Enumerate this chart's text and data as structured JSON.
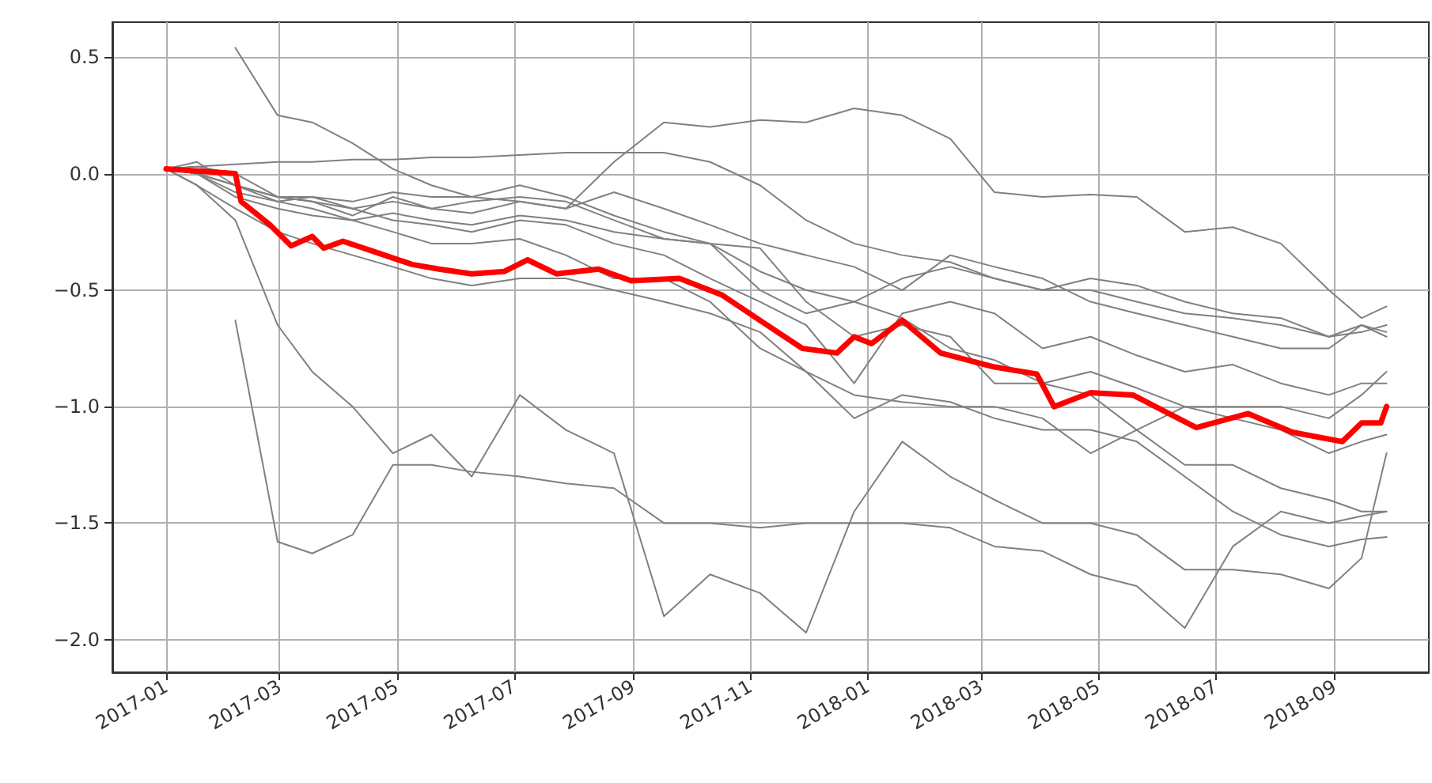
{
  "chart_data": {
    "type": "line",
    "x": [
      "2017-01-01",
      "2017-01-17",
      "2017-02-06",
      "2017-02-28",
      "2017-03-18",
      "2017-04-08",
      "2017-04-29",
      "2017-05-19",
      "2017-06-09",
      "2017-07-04",
      "2017-07-28",
      "2017-08-22",
      "2017-09-17",
      "2017-10-11",
      "2017-11-06",
      "2017-11-30",
      "2017-12-25",
      "2018-01-19",
      "2018-02-13",
      "2018-03-08",
      "2018-04-02",
      "2018-04-27",
      "2018-05-21",
      "2018-06-15",
      "2018-07-10",
      "2018-08-04",
      "2018-08-29",
      "2018-09-15",
      "2018-09-28"
    ],
    "series": [
      {
        "color": "#808080",
        "values": [
          0.02,
          0.03,
          0.04,
          0.05,
          0.05,
          0.06,
          0.06,
          0.07,
          0.07,
          0.08,
          0.09,
          0.09,
          0.09,
          0.05,
          -0.05,
          -0.2,
          -0.3,
          -0.35,
          -0.38,
          -0.45,
          -0.5,
          -0.5,
          -0.55,
          -0.6,
          -0.62,
          -0.65,
          -0.7,
          -0.68,
          -0.65
        ]
      },
      {
        "color": "#808080",
        "values": [
          0.02,
          0.0,
          -0.05,
          -0.1,
          -0.12,
          -0.15,
          -0.12,
          -0.15,
          -0.17,
          -0.12,
          -0.15,
          0.05,
          0.22,
          0.2,
          0.23,
          0.22,
          0.28,
          0.25,
          0.15,
          -0.08,
          -0.1,
          -0.09,
          -0.1,
          -0.25,
          -0.23,
          -0.3,
          -0.5,
          -0.62,
          -0.57
        ]
      },
      {
        "color": "#808080",
        "values": [
          null,
          null,
          0.54,
          0.25,
          0.22,
          0.13,
          0.02,
          -0.05,
          -0.1,
          -0.12,
          -0.15,
          -0.08,
          -0.15,
          -0.22,
          -0.3,
          -0.35,
          -0.4,
          -0.5,
          -0.35,
          -0.4,
          -0.45,
          -0.55,
          -0.6,
          -0.65,
          -0.7,
          -0.75,
          -0.75,
          -0.65,
          -0.7
        ]
      },
      {
        "color": "#808080",
        "values": [
          null,
          null,
          -0.63,
          -1.58,
          -1.63,
          -1.55,
          -1.25,
          -1.25,
          -1.28,
          -1.3,
          -1.33,
          -1.35,
          -1.5,
          -1.5,
          -1.52,
          -1.5,
          -1.5,
          -1.5,
          -1.52,
          -1.6,
          -1.62,
          -1.72,
          -1.77,
          -1.95,
          -1.6,
          -1.45,
          -1.5,
          -1.47,
          -1.45
        ]
      },
      {
        "color": "#808080",
        "values": [
          0.02,
          -0.05,
          -0.2,
          -0.65,
          -0.85,
          -1.0,
          -1.2,
          -1.12,
          -1.3,
          -0.95,
          -1.1,
          -1.2,
          -1.9,
          -1.72,
          -1.8,
          -1.97,
          -1.45,
          -1.15,
          -1.3,
          -1.4,
          -1.5,
          -1.5,
          -1.55,
          -1.7,
          -1.7,
          -1.72,
          -1.78,
          -1.65,
          -1.2
        ]
      },
      {
        "color": "#808080",
        "values": [
          0.02,
          0.0,
          -0.08,
          -0.12,
          -0.15,
          -0.2,
          -0.17,
          -0.2,
          -0.22,
          -0.18,
          -0.2,
          -0.25,
          -0.28,
          -0.3,
          -0.42,
          -0.5,
          -0.55,
          -0.45,
          -0.4,
          -0.45,
          -0.5,
          -0.45,
          -0.48,
          -0.55,
          -0.6,
          -0.62,
          -0.7,
          -0.65,
          -0.68
        ]
      },
      {
        "color": "#808080",
        "values": [
          0.02,
          0.05,
          -0.05,
          -0.1,
          -0.1,
          -0.15,
          -0.2,
          -0.22,
          -0.25,
          -0.2,
          -0.22,
          -0.3,
          -0.35,
          -0.45,
          -0.55,
          -0.65,
          -0.9,
          -0.6,
          -0.55,
          -0.6,
          -0.75,
          -0.7,
          -0.78,
          -0.85,
          -0.82,
          -0.9,
          -0.95,
          -0.9,
          -0.9
        ]
      },
      {
        "color": "#808080",
        "values": [
          0.02,
          0.0,
          -0.1,
          -0.15,
          -0.18,
          -0.2,
          -0.25,
          -0.3,
          -0.3,
          -0.28,
          -0.35,
          -0.45,
          -0.45,
          -0.55,
          -0.75,
          -0.85,
          -0.95,
          -0.98,
          -1.0,
          -1.0,
          -1.05,
          -1.2,
          -1.1,
          -1.25,
          -1.25,
          -1.35,
          -1.4,
          -1.45,
          -1.45
        ]
      },
      {
        "color": "#808080",
        "values": [
          0.02,
          -0.05,
          -0.15,
          -0.25,
          -0.3,
          -0.35,
          -0.4,
          -0.45,
          -0.48,
          -0.45,
          -0.45,
          -0.5,
          -0.55,
          -0.6,
          -0.68,
          -0.85,
          -1.05,
          -0.95,
          -0.98,
          -1.05,
          -1.1,
          -1.1,
          -1.15,
          -1.3,
          -1.45,
          -1.55,
          -1.6,
          -1.57,
          -1.56
        ]
      },
      {
        "color": "#808080",
        "values": [
          0.02,
          0.0,
          -0.05,
          -0.12,
          -0.1,
          -0.12,
          -0.08,
          -0.1,
          -0.1,
          -0.05,
          -0.1,
          -0.18,
          -0.25,
          -0.3,
          -0.5,
          -0.6,
          -0.55,
          -0.62,
          -0.75,
          -0.8,
          -0.9,
          -0.85,
          -0.92,
          -1.0,
          -1.05,
          -1.1,
          -1.2,
          -1.15,
          -1.12
        ]
      },
      {
        "color": "#808080",
        "values": [
          0.02,
          0.03,
          0.0,
          -0.1,
          -0.12,
          -0.18,
          -0.1,
          -0.15,
          -0.12,
          -0.1,
          -0.12,
          -0.2,
          -0.28,
          -0.3,
          -0.32,
          -0.55,
          -0.7,
          -0.65,
          -0.7,
          -0.9,
          -0.9,
          -0.95,
          -1.1,
          -1.0,
          -1.0,
          -1.0,
          -1.05,
          -0.95,
          -0.85
        ]
      },
      {
        "color": "#ff0000",
        "x": [
          "2017-01-01",
          "2017-02-06",
          "2017-02-09",
          "2017-02-24",
          "2017-03-07",
          "2017-03-18",
          "2017-03-24",
          "2017-04-03",
          "2017-04-21",
          "2017-05-09",
          "2017-05-23",
          "2017-06-09",
          "2017-06-26",
          "2017-07-08",
          "2017-07-23",
          "2017-08-14",
          "2017-08-31",
          "2017-09-25",
          "2017-10-17",
          "2017-11-06",
          "2017-11-28",
          "2017-12-16",
          "2017-12-25",
          "2018-01-03",
          "2018-01-19",
          "2018-02-08",
          "2018-03-08",
          "2018-03-30",
          "2018-04-08",
          "2018-04-27",
          "2018-05-19",
          "2018-06-21",
          "2018-07-18",
          "2018-08-10",
          "2018-09-05",
          "2018-09-15",
          "2018-09-25",
          "2018-09-28"
        ],
        "values": [
          0.02,
          0.0,
          -0.12,
          -0.22,
          -0.31,
          -0.27,
          -0.32,
          -0.29,
          -0.34,
          -0.39,
          -0.41,
          -0.43,
          -0.42,
          -0.37,
          -0.43,
          -0.41,
          -0.46,
          -0.45,
          -0.52,
          -0.63,
          -0.75,
          -0.77,
          -0.7,
          -0.73,
          -0.63,
          -0.77,
          -0.83,
          -0.86,
          -1.0,
          -0.94,
          -0.95,
          -1.09,
          -1.03,
          -1.11,
          -1.15,
          -1.07,
          -1.07,
          -1.0
        ]
      }
    ],
    "xlim": [
      "2016-12-04",
      "2018-10-20"
    ],
    "xticks": [
      "2017-01",
      "2017-03",
      "2017-05",
      "2017-07",
      "2017-09",
      "2017-11",
      "2018-01",
      "2018-03",
      "2018-05",
      "2018-07",
      "2018-09"
    ],
    "ylim": [
      -2.14,
      0.65
    ],
    "yticks": [
      {
        "value": -2,
        "label": "−2.0"
      },
      {
        "value": -1.5,
        "label": "−1.5"
      },
      {
        "value": -1,
        "label": "−1.0"
      },
      {
        "value": -0.5,
        "label": "−0.5"
      },
      {
        "value": 0,
        "label": "0.0"
      },
      {
        "value": 0.5,
        "label": "0.5"
      }
    ],
    "grid": true,
    "marker": "none",
    "line_style": "solid"
  }
}
